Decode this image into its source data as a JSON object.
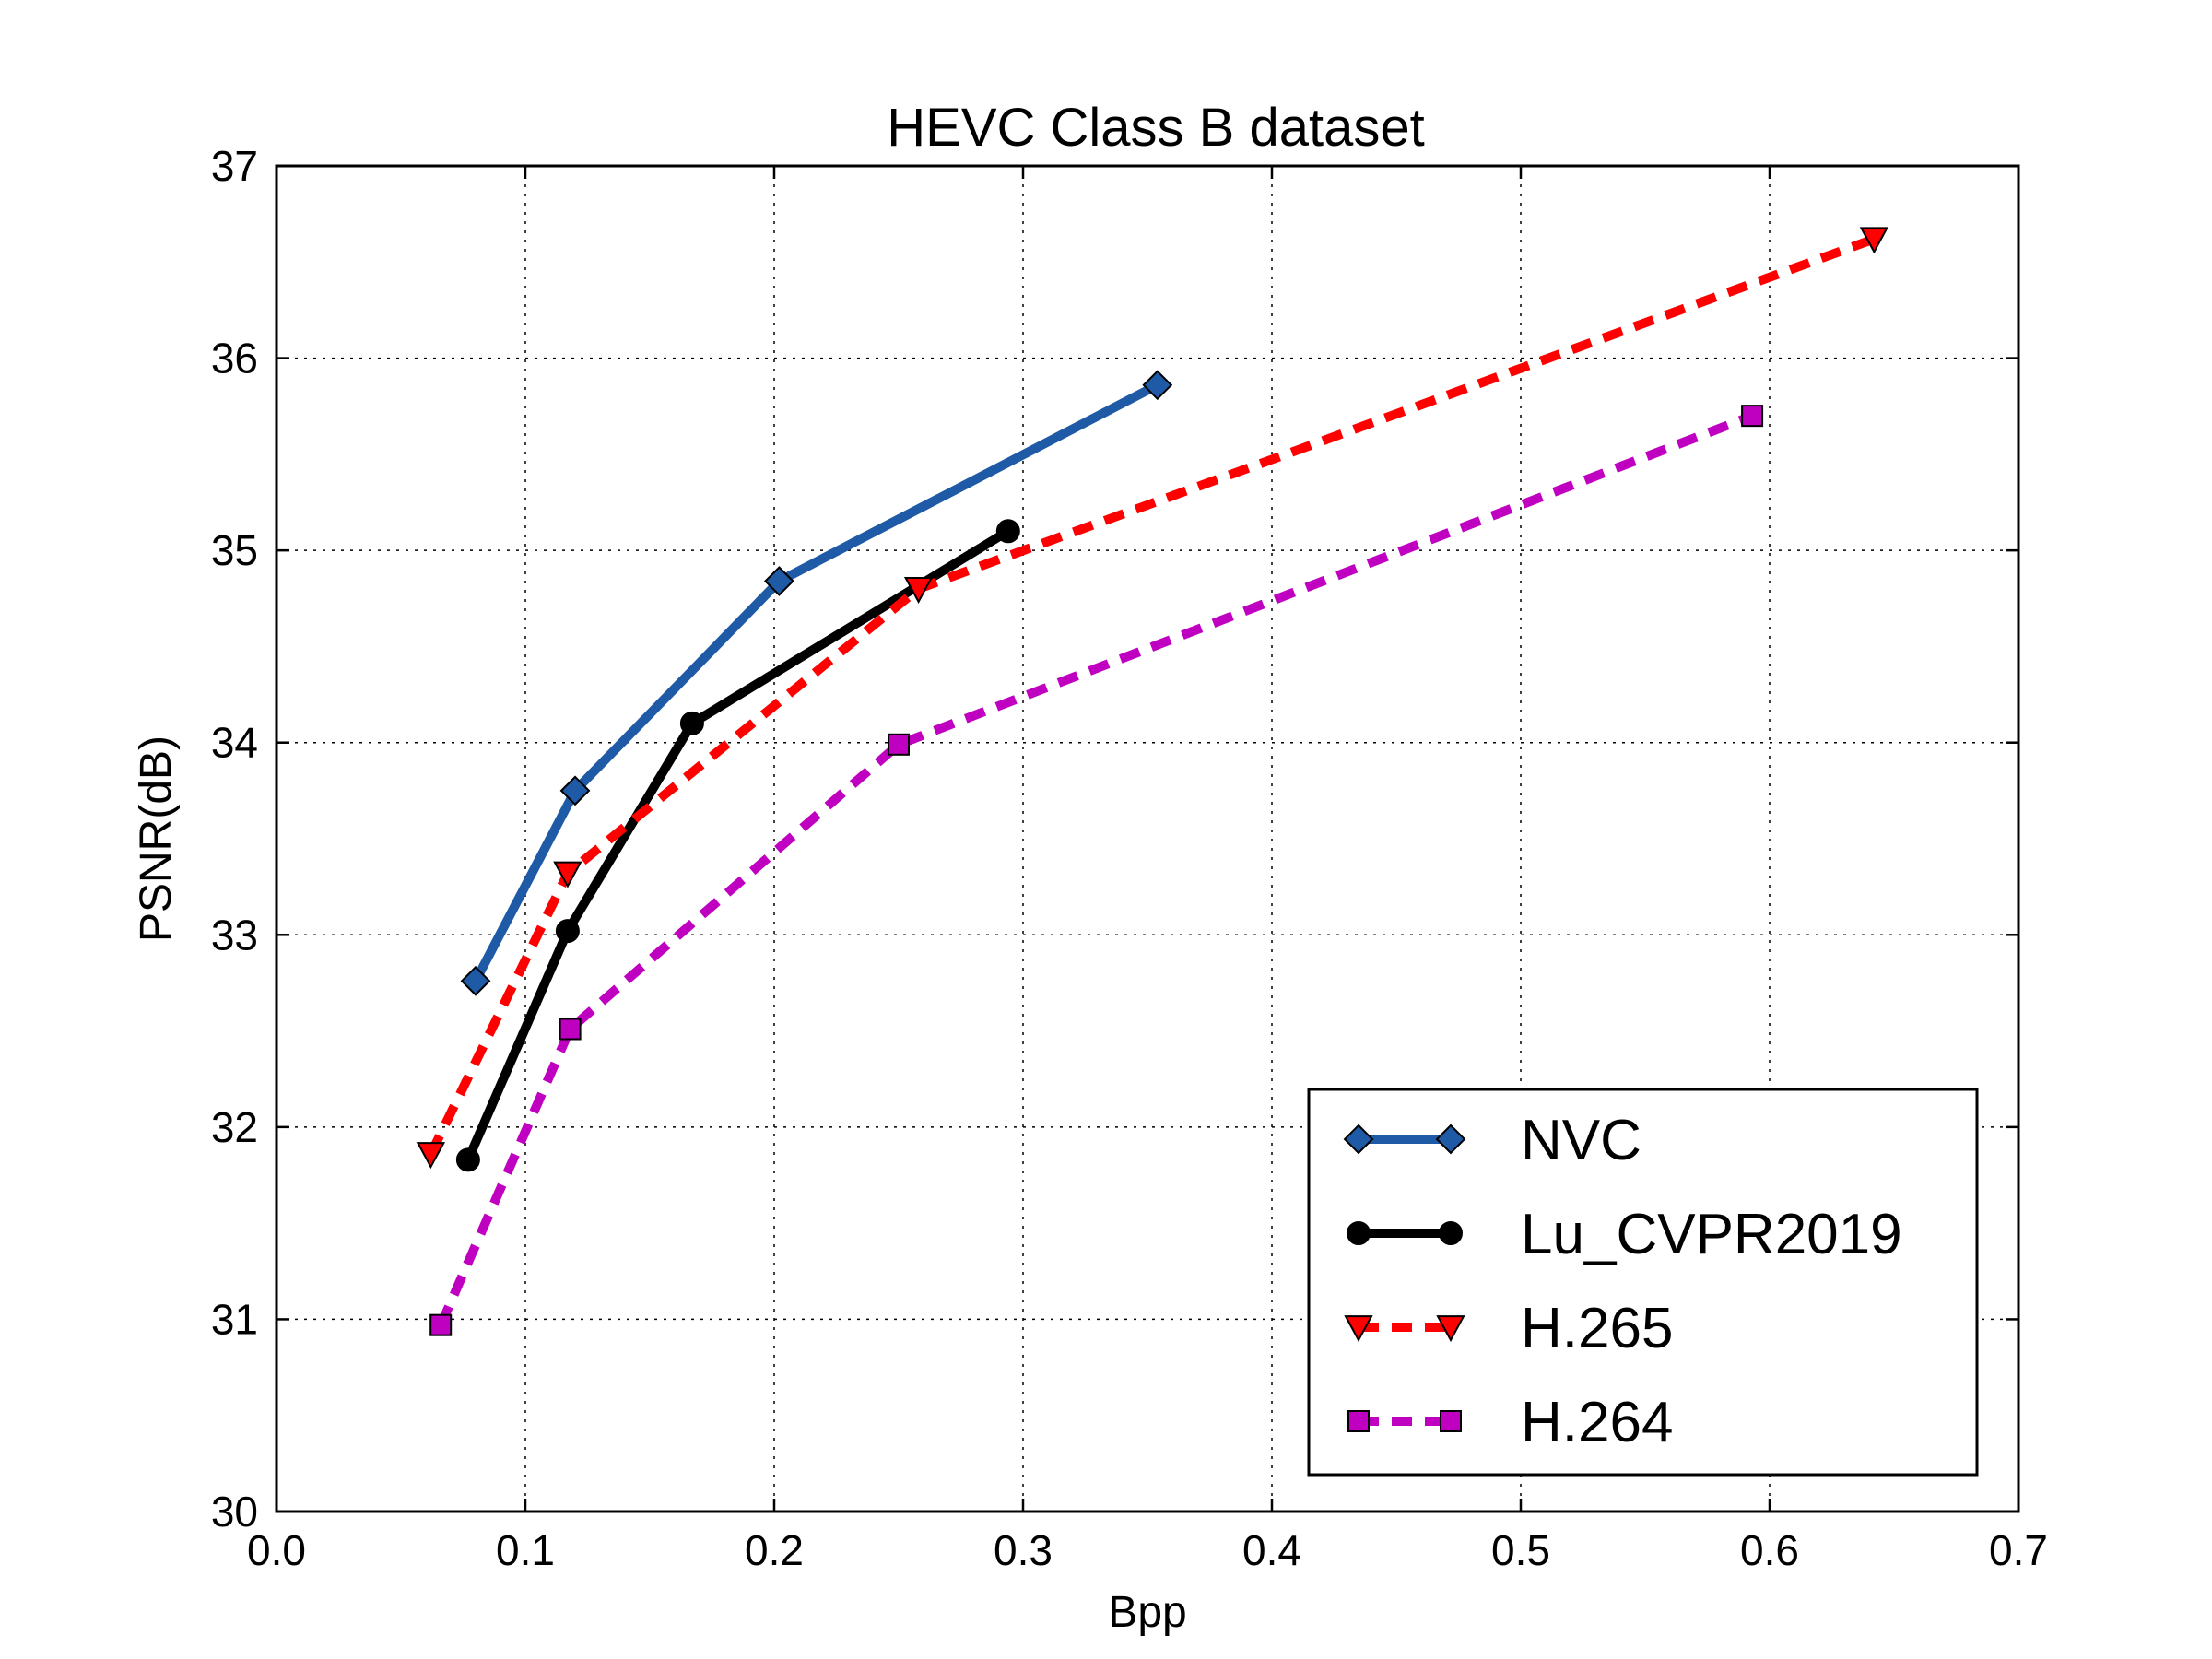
{
  "chart_data": {
    "type": "line",
    "title": "HEVC Class B dataset",
    "xlabel": "Bpp",
    "ylabel": "PSNR(dB)",
    "xlim": [
      0.0,
      0.7
    ],
    "ylim": [
      30,
      37
    ],
    "xticks": [
      "0.0",
      "0.1",
      "0.2",
      "0.3",
      "0.4",
      "0.5",
      "0.6",
      "0.7"
    ],
    "yticks": [
      "30",
      "31",
      "32",
      "33",
      "34",
      "35",
      "36",
      "37"
    ],
    "grid": true,
    "legend_position": "lower-right",
    "series": [
      {
        "name": "NVC",
        "color": "#1f5aa6",
        "line_style": "solid",
        "marker": "diamond",
        "x": [
          0.08,
          0.12,
          0.202,
          0.354
        ],
        "y": [
          32.76,
          33.75,
          34.84,
          35.86
        ]
      },
      {
        "name": "Lu_CVPR2019",
        "color": "#000000",
        "line_style": "solid",
        "marker": "circle",
        "x": [
          0.077,
          0.117,
          0.167,
          0.294
        ],
        "y": [
          31.83,
          33.02,
          34.1,
          35.1
        ]
      },
      {
        "name": "H.265",
        "color": "#ff0000",
        "line_style": "dashed",
        "marker": "triangle-down",
        "x": [
          0.062,
          0.117,
          0.258,
          0.642
        ],
        "y": [
          31.86,
          33.32,
          34.8,
          36.62
        ]
      },
      {
        "name": "H.264",
        "color": "#c000c0",
        "line_style": "dashed",
        "marker": "square",
        "x": [
          0.066,
          0.118,
          0.25,
          0.593
        ],
        "y": [
          30.97,
          32.51,
          33.99,
          35.7
        ]
      }
    ]
  }
}
